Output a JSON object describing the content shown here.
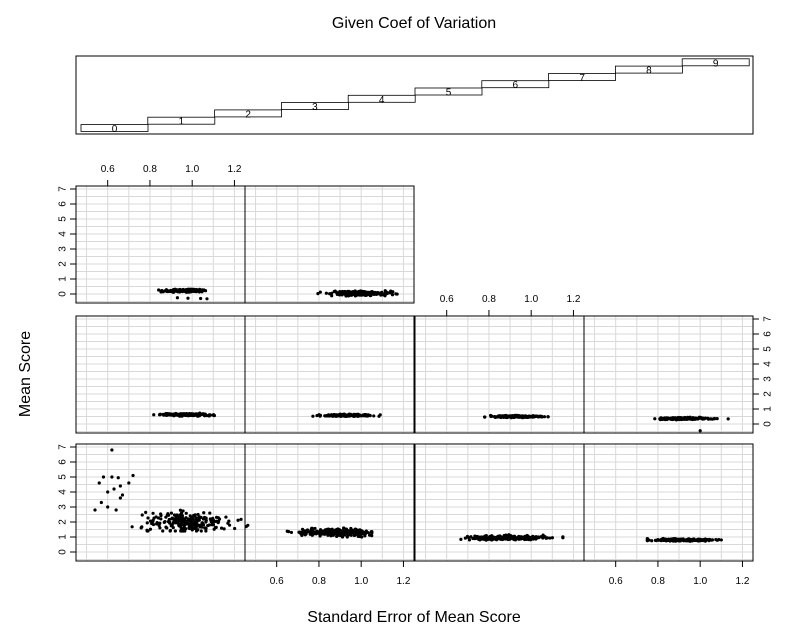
{
  "chart_data": {
    "type": "scatter",
    "layout": "coplot",
    "title": "Given Coef of Variation",
    "xlabel": "Standard Error of Mean Score",
    "ylabel": "Mean Score",
    "xlim": [
      0.45,
      1.25
    ],
    "ylim": [
      -0.6,
      7.2
    ],
    "xticks": [
      "0.6",
      "0.8",
      "1.0",
      "1.2"
    ],
    "yticks": [
      "0",
      "1",
      "2",
      "3",
      "4",
      "5",
      "6",
      "7"
    ],
    "grid": true,
    "given": {
      "name": "Coef of Variation",
      "labels": [
        "0",
        "1",
        "2",
        "3",
        "4",
        "5",
        "6",
        "7",
        "8",
        "9"
      ]
    },
    "panels": [
      {
        "given": "0",
        "row": 0,
        "col": 0,
        "n": 220,
        "x_center": 0.98,
        "x_sd": 0.1,
        "x_min": 0.7,
        "x_max": 1.4,
        "y_center": 2.0,
        "y_sd": 0.35,
        "y_min": 1.4,
        "y_max": 3.5,
        "extra_points": [
          [
            0.56,
            4.6
          ],
          [
            0.58,
            5.0
          ],
          [
            0.6,
            4.0
          ],
          [
            0.62,
            5.0
          ],
          [
            0.63,
            4.2
          ],
          [
            0.65,
            4.95
          ],
          [
            0.67,
            3.8
          ],
          [
            0.7,
            4.6
          ],
          [
            0.72,
            5.1
          ],
          [
            0.62,
            6.8
          ],
          [
            0.66,
            4.4
          ],
          [
            0.54,
            2.8
          ],
          [
            0.57,
            3.3
          ],
          [
            0.6,
            3.0
          ],
          [
            0.64,
            2.8
          ],
          [
            0.66,
            3.6
          ]
        ]
      },
      {
        "given": "1",
        "row": 0,
        "col": 1,
        "n": 260,
        "x_center": 0.87,
        "x_sd": 0.09,
        "x_min": 0.65,
        "x_max": 1.05,
        "y_center": 1.3,
        "y_sd": 0.12,
        "y_min": 1.0,
        "y_max": 1.8
      },
      {
        "given": "2",
        "row": 0,
        "col": 2,
        "n": 260,
        "x_center": 0.89,
        "x_sd": 0.09,
        "x_min": 0.65,
        "x_max": 1.15,
        "y_center": 0.95,
        "y_sd": 0.07,
        "y_min": 0.75,
        "y_max": 1.2
      },
      {
        "given": "3",
        "row": 0,
        "col": 3,
        "n": 220,
        "x_center": 0.92,
        "x_sd": 0.07,
        "x_min": 0.75,
        "x_max": 1.1,
        "y_center": 0.8,
        "y_sd": 0.04,
        "y_min": 0.7,
        "y_max": 0.95
      },
      {
        "given": "4",
        "row": 1,
        "col": 0,
        "n": 200,
        "x_center": 0.98,
        "x_sd": 0.06,
        "x_min": 0.78,
        "x_max": 1.15,
        "y_center": 0.62,
        "y_sd": 0.035,
        "y_min": 0.52,
        "y_max": 0.75
      },
      {
        "given": "5",
        "row": 1,
        "col": 1,
        "n": 220,
        "x_center": 0.93,
        "x_sd": 0.06,
        "x_min": 0.75,
        "x_max": 1.25,
        "y_center": 0.58,
        "y_sd": 0.03,
        "y_min": 0.5,
        "y_max": 0.66
      },
      {
        "given": "6",
        "row": 1,
        "col": 2,
        "n": 200,
        "x_center": 0.92,
        "x_sd": 0.06,
        "x_min": 0.78,
        "x_max": 1.12,
        "y_center": 0.5,
        "y_sd": 0.03,
        "y_min": 0.42,
        "y_max": 0.58
      },
      {
        "given": "7",
        "row": 1,
        "col": 3,
        "n": 200,
        "x_center": 0.92,
        "x_sd": 0.06,
        "x_min": 0.78,
        "x_max": 1.17,
        "y_center": 0.36,
        "y_sd": 0.03,
        "y_min": 0.25,
        "y_max": 0.45,
        "extra_points": [
          [
            1.0,
            -0.45
          ]
        ]
      },
      {
        "given": "8",
        "row": 2,
        "col": 0,
        "n": 200,
        "x_center": 0.96,
        "x_sd": 0.05,
        "x_min": 0.8,
        "x_max": 1.12,
        "y_center": 0.22,
        "y_sd": 0.04,
        "y_min": 0.12,
        "y_max": 0.32,
        "extra_points": [
          [
            0.93,
            -0.25
          ],
          [
            0.98,
            -0.28
          ],
          [
            1.04,
            -0.3
          ],
          [
            1.07,
            -0.32
          ]
        ]
      },
      {
        "given": "9",
        "row": 2,
        "col": 1,
        "n": 240,
        "x_center": 1.0,
        "x_sd": 0.07,
        "x_min": 0.75,
        "x_max": 1.2,
        "y_center": 0.05,
        "y_sd": 0.07,
        "y_min": -0.15,
        "y_max": 0.22
      }
    ]
  }
}
